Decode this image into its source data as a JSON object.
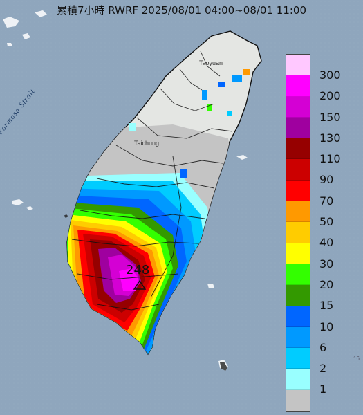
{
  "title": "累積7小時 RWRF 2025/08/01 04:00~08/01 11:00",
  "max_value": "248",
  "strait_label": "Formosa Strait",
  "cities": {
    "taoyuan": "Taoyuan",
    "taichung": "Taichung"
  },
  "edge_text": "16",
  "legend": {
    "labels": [
      "300",
      "200",
      "150",
      "130",
      "110",
      "90",
      "70",
      "50",
      "40",
      "30",
      "20",
      "15",
      "10",
      "6",
      "2",
      "1"
    ],
    "colors": [
      "#ffc8ff",
      "#ff00ff",
      "#d400d4",
      "#9f009f",
      "#960000",
      "#cc0000",
      "#ff0000",
      "#ff9900",
      "#ffcc00",
      "#ffff00",
      "#33ff00",
      "#339900",
      "#0066ff",
      "#0099ff",
      "#00ccff",
      "#99ffff",
      "#c4c4c4"
    ]
  }
}
